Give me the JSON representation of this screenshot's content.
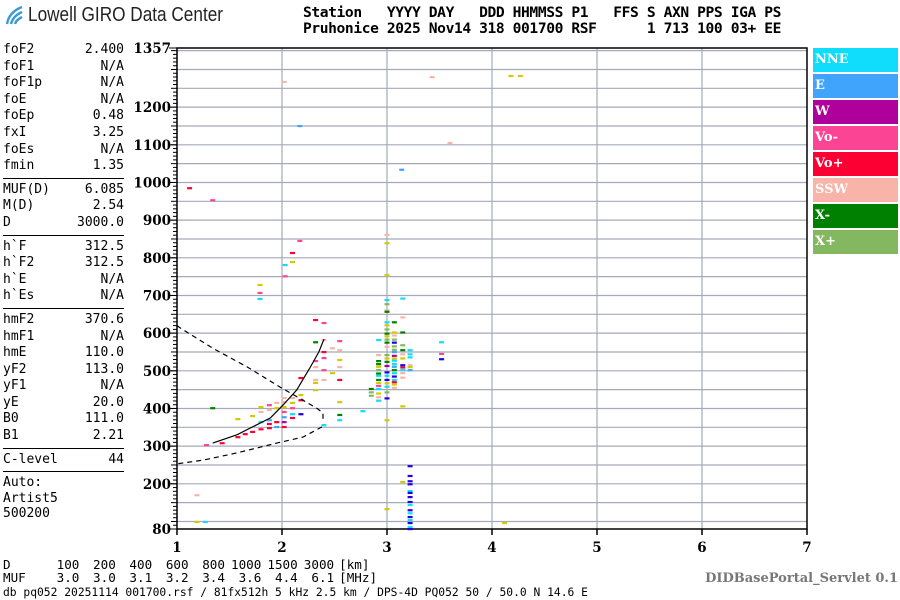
{
  "logo": {
    "text": "Lowell GIRO Data Center"
  },
  "header": {
    "labels_line": "Station   YYYY DAY   DDD HHMMSS P1   FFS S AXN PPS IGA PS",
    "values_line": "Pruhonice 2025 Nov14 318 001700 RSF      1 713 100 03+ EE"
  },
  "params": [
    [
      [
        "foF2",
        "2.400"
      ],
      [
        "foF1",
        "N/A"
      ],
      [
        "foF1p",
        "N/A"
      ],
      [
        "foE",
        "N/A"
      ],
      [
        "foEp",
        "0.48"
      ],
      [
        "fxI",
        "3.25"
      ],
      [
        "foEs",
        "N/A"
      ],
      [
        "fmin",
        "1.35"
      ]
    ],
    [
      [
        "MUF(D)",
        "6.085"
      ],
      [
        "M(D)",
        "2.54"
      ],
      [
        "D",
        "3000.0"
      ]
    ],
    [
      [
        "h`F",
        "312.5"
      ],
      [
        "h`F2",
        "312.5"
      ],
      [
        "h`E",
        "N/A"
      ],
      [
        "h`Es",
        "N/A"
      ]
    ],
    [
      [
        "hmF2",
        "370.6"
      ],
      [
        "hmF1",
        "N/A"
      ],
      [
        "hmE",
        "110.0"
      ],
      [
        "yF2",
        "113.0"
      ],
      [
        "yF1",
        "N/A"
      ],
      [
        "yE",
        "20.0"
      ],
      [
        "B0",
        "111.0"
      ],
      [
        "B1",
        "2.21"
      ]
    ],
    [
      [
        "C-level",
        "44"
      ]
    ]
  ],
  "autoscaling": [
    "Auto:",
    "Artist5",
    "500200"
  ],
  "legend": [
    {
      "label": "NNE",
      "color": "#10dcfc"
    },
    {
      "label": "E",
      "color": "#40a4fc"
    },
    {
      "label": "W",
      "color": "#b0009c"
    },
    {
      "label": "Vo-",
      "color": "#fc4494"
    },
    {
      "label": "Vo+",
      "color": "#fc0034"
    },
    {
      "label": "SSW",
      "color": "#f8b4a8"
    },
    {
      "label": "X-",
      "color": "#008000"
    },
    {
      "label": "X+",
      "color": "#84b860"
    }
  ],
  "bottom": {
    "d_label": "D",
    "d_values": [
      "100",
      "200",
      "400",
      "600",
      "800",
      "1000",
      "1500",
      "3000"
    ],
    "d_unit": "[km]",
    "muf_label": "MUF",
    "muf_values": [
      "3.0",
      "3.0",
      "3.1",
      "3.2",
      "3.4",
      "3.6",
      "4.4",
      "6.1"
    ],
    "muf_unit": "[MHz]",
    "db_line": "db pq052 20251114 001700.rsf / 81fx512h 5 kHz 2.5 km / DPS-4D PQ052 50 / 50.0 N 14.6 E",
    "servlet": "DIDBasePortal_Servlet 0.1"
  },
  "chart_data": {
    "type": "scatter",
    "xlim": [
      1,
      7
    ],
    "ylim": [
      80,
      1357
    ],
    "x_ticks": [
      "1",
      "2",
      "3",
      "4",
      "5",
      "6",
      "7"
    ],
    "y_ticks": [
      "80",
      "200",
      "300",
      "400",
      "500",
      "600",
      "700",
      "800",
      "900",
      "1000",
      "1100",
      "1200",
      "1357"
    ],
    "grid": true,
    "legend_position": "right",
    "extra_colors": {
      "y": "#d4c800",
      "b": "#2000e0"
    },
    "color_codes": {
      "N": "NNE",
      "E": "E",
      "W": "W",
      "m": "Vo-",
      "p": "Vo+",
      "S": "SSW",
      "x": "X-",
      "X": "X+"
    },
    "traces": [
      [
        1.12,
        985,
        "p"
      ],
      [
        1.34,
        953,
        "m"
      ],
      [
        2.02,
        1267,
        "S"
      ],
      [
        2.17,
        1150,
        "E"
      ],
      [
        3.43,
        1280,
        "S"
      ],
      [
        4.18,
        1283,
        "y"
      ],
      [
        4.27,
        1283,
        "y"
      ],
      [
        3.6,
        1105,
        "S"
      ],
      [
        3.14,
        1034,
        "E"
      ],
      [
        3.0,
        861,
        "S"
      ],
      [
        1.79,
        728,
        "y"
      ],
      [
        1.79,
        707,
        "m"
      ],
      [
        1.79,
        691,
        "N"
      ],
      [
        2.03,
        781,
        "N"
      ],
      [
        2.03,
        751,
        "m"
      ],
      [
        2.1,
        789,
        "y"
      ],
      [
        2.1,
        813,
        "p"
      ],
      [
        2.17,
        845,
        "m"
      ],
      [
        1.28,
        303,
        "m"
      ],
      [
        1.43,
        308,
        "p"
      ],
      [
        1.58,
        324,
        "p"
      ],
      [
        1.58,
        372,
        "y"
      ],
      [
        1.65,
        332,
        "p"
      ],
      [
        1.72,
        338,
        "p"
      ],
      [
        1.72,
        380,
        "y"
      ],
      [
        1.8,
        345,
        "p"
      ],
      [
        1.8,
        364,
        "N"
      ],
      [
        1.8,
        391,
        "S"
      ],
      [
        1.8,
        404,
        "y"
      ],
      [
        1.88,
        348,
        "p"
      ],
      [
        1.88,
        359,
        "p"
      ],
      [
        1.88,
        369,
        "E"
      ],
      [
        1.88,
        396,
        "S"
      ],
      [
        1.88,
        409,
        "m"
      ],
      [
        1.95,
        351,
        "E"
      ],
      [
        1.95,
        364,
        "p"
      ],
      [
        1.95,
        401,
        "y"
      ],
      [
        1.95,
        415,
        "S"
      ],
      [
        2.02,
        351,
        "p"
      ],
      [
        2.02,
        364,
        "W"
      ],
      [
        2.02,
        377,
        "E"
      ],
      [
        2.02,
        391,
        "m"
      ],
      [
        2.02,
        404,
        "y"
      ],
      [
        2.02,
        417,
        "S"
      ],
      [
        2.02,
        428,
        "S"
      ],
      [
        2.1,
        375,
        "p"
      ],
      [
        2.1,
        385,
        "N"
      ],
      [
        2.1,
        401,
        "m"
      ],
      [
        2.1,
        415,
        "y"
      ],
      [
        2.1,
        428,
        "S"
      ],
      [
        2.18,
        385,
        "b"
      ],
      [
        2.18,
        422,
        "p"
      ],
      [
        2.18,
        436,
        "y"
      ],
      [
        2.18,
        481,
        "p"
      ],
      [
        2.32,
        449,
        "y"
      ],
      [
        2.32,
        468,
        "y"
      ],
      [
        2.32,
        476,
        "S"
      ],
      [
        2.32,
        510,
        "S"
      ],
      [
        2.32,
        526,
        "m"
      ],
      [
        2.32,
        576,
        "x"
      ],
      [
        2.32,
        635,
        "p"
      ],
      [
        2.4,
        476,
        "S"
      ],
      [
        2.4,
        502,
        "m"
      ],
      [
        2.4,
        534,
        "m"
      ],
      [
        2.4,
        550,
        "p"
      ],
      [
        2.4,
        582,
        "S"
      ],
      [
        2.4,
        627,
        "m"
      ],
      [
        2.4,
        356,
        "N"
      ],
      [
        2.48,
        560,
        "S"
      ],
      [
        2.48,
        494,
        "y"
      ],
      [
        2.55,
        579,
        "m"
      ],
      [
        2.55,
        555,
        "S"
      ],
      [
        2.55,
        529,
        "y"
      ],
      [
        2.55,
        510,
        "S"
      ],
      [
        2.55,
        476,
        "p"
      ],
      [
        2.55,
        417,
        "y"
      ],
      [
        2.55,
        383,
        "x"
      ],
      [
        2.55,
        369,
        "N"
      ],
      [
        1.34,
        401,
        "x"
      ],
      [
        2.77,
        393,
        "N"
      ],
      [
        2.85,
        452,
        "x"
      ],
      [
        2.85,
        443,
        "X"
      ],
      [
        2.85,
        434,
        "X"
      ],
      [
        2.92,
        582,
        "N"
      ],
      [
        2.92,
        542,
        "S"
      ],
      [
        2.92,
        526,
        "x"
      ],
      [
        2.92,
        518,
        "x"
      ],
      [
        2.92,
        511,
        "y"
      ],
      [
        2.92,
        502,
        "X"
      ],
      [
        2.92,
        493,
        "x"
      ],
      [
        2.92,
        487,
        "N"
      ],
      [
        2.92,
        476,
        "x"
      ],
      [
        2.92,
        468,
        "y"
      ],
      [
        2.92,
        460,
        "m"
      ],
      [
        2.92,
        452,
        "N"
      ],
      [
        2.92,
        440,
        "y"
      ],
      [
        2.92,
        430,
        "S"
      ],
      [
        2.92,
        421,
        "N"
      ],
      [
        3.0,
        839,
        "y"
      ],
      [
        3.0,
        754,
        "y"
      ],
      [
        3.0,
        688,
        "N"
      ],
      [
        3.0,
        677,
        "X"
      ],
      [
        3.0,
        661,
        "S"
      ],
      [
        3.0,
        657,
        "x"
      ],
      [
        3.0,
        629,
        "N"
      ],
      [
        3.0,
        621,
        "y"
      ],
      [
        3.0,
        610,
        "X"
      ],
      [
        3.0,
        599,
        "x"
      ],
      [
        3.0,
        592,
        "y"
      ],
      [
        3.0,
        583,
        "X"
      ],
      [
        3.0,
        575,
        "x"
      ],
      [
        3.0,
        564,
        "S"
      ],
      [
        3.0,
        542,
        "X"
      ],
      [
        3.0,
        533,
        "y"
      ],
      [
        3.0,
        524,
        "x"
      ],
      [
        3.0,
        513,
        "W"
      ],
      [
        3.0,
        496,
        "b"
      ],
      [
        3.0,
        487,
        "N"
      ],
      [
        3.0,
        476,
        "b"
      ],
      [
        3.0,
        467,
        "y"
      ],
      [
        3.0,
        458,
        "N"
      ],
      [
        3.0,
        443,
        "X"
      ],
      [
        3.0,
        427,
        "b"
      ],
      [
        3.0,
        369,
        "y"
      ],
      [
        3.07,
        629,
        "x"
      ],
      [
        3.07,
        602,
        "y"
      ],
      [
        3.07,
        594,
        "S"
      ],
      [
        3.07,
        583,
        "X"
      ],
      [
        3.07,
        575,
        "b"
      ],
      [
        3.07,
        565,
        "X"
      ],
      [
        3.07,
        556,
        "X"
      ],
      [
        3.07,
        550,
        "E"
      ],
      [
        3.07,
        540,
        "W"
      ],
      [
        3.07,
        533,
        "y"
      ],
      [
        3.07,
        527,
        "N"
      ],
      [
        3.07,
        518,
        "N"
      ],
      [
        3.07,
        511,
        "E"
      ],
      [
        3.07,
        502,
        "x"
      ],
      [
        3.07,
        494,
        "N"
      ],
      [
        3.07,
        485,
        "b"
      ],
      [
        3.07,
        476,
        "N"
      ],
      [
        3.07,
        470,
        "p"
      ],
      [
        3.07,
        464,
        "y"
      ],
      [
        3.07,
        455,
        "S"
      ],
      [
        3.15,
        692,
        "N"
      ],
      [
        3.15,
        642,
        "S"
      ],
      [
        3.15,
        602,
        "x"
      ],
      [
        3.15,
        568,
        "X"
      ],
      [
        3.15,
        555,
        "x"
      ],
      [
        3.15,
        544,
        "S"
      ],
      [
        3.15,
        533,
        "y"
      ],
      [
        3.15,
        515,
        "b"
      ],
      [
        3.15,
        509,
        "p"
      ],
      [
        3.15,
        502,
        "N"
      ],
      [
        3.15,
        494,
        "S"
      ],
      [
        3.15,
        482,
        "S"
      ],
      [
        3.15,
        406,
        "y"
      ],
      [
        3.22,
        555,
        "N"
      ],
      [
        3.22,
        544,
        "N"
      ],
      [
        3.22,
        536,
        "N"
      ],
      [
        3.22,
        515,
        "S"
      ],
      [
        3.22,
        510,
        "y"
      ],
      [
        3.22,
        502,
        "E"
      ],
      [
        3.52,
        576,
        "N"
      ],
      [
        3.52,
        545,
        "m"
      ],
      [
        3.52,
        531,
        "b"
      ],
      [
        3.22,
        247,
        "b"
      ],
      [
        3.22,
        221,
        "b"
      ],
      [
        3.22,
        207,
        "b"
      ],
      [
        3.22,
        199,
        "b"
      ],
      [
        3.22,
        181,
        "N"
      ],
      [
        3.22,
        176,
        "b"
      ],
      [
        3.22,
        165,
        "b"
      ],
      [
        3.22,
        152,
        "b"
      ],
      [
        3.22,
        144,
        "N"
      ],
      [
        3.22,
        130,
        "b"
      ],
      [
        3.22,
        122,
        "N"
      ],
      [
        3.22,
        112,
        "b"
      ],
      [
        3.22,
        104,
        "N"
      ],
      [
        3.22,
        96,
        "b"
      ],
      [
        3.22,
        85,
        "N"
      ],
      [
        3.22,
        80,
        "b"
      ],
      [
        3.15,
        205,
        "y"
      ],
      [
        3.0,
        133,
        "y"
      ],
      [
        1.19,
        99,
        "y"
      ],
      [
        1.27,
        99,
        "N"
      ],
      [
        1.19,
        170,
        "S"
      ],
      [
        4.12,
        96,
        "y"
      ]
    ],
    "curves": [
      {
        "style": "solid",
        "points": [
          [
            1.34,
            308
          ],
          [
            1.57,
            330
          ],
          [
            1.72,
            351
          ],
          [
            1.89,
            375
          ],
          [
            2.01,
            409
          ],
          [
            2.14,
            449
          ],
          [
            2.27,
            510
          ],
          [
            2.35,
            550
          ],
          [
            2.4,
            584
          ]
        ]
      },
      {
        "style": "dashed",
        "points": [
          [
            1.0,
            620
          ],
          [
            1.03,
            614
          ],
          [
            1.34,
            560
          ],
          [
            1.67,
            510
          ],
          [
            1.98,
            457
          ],
          [
            2.2,
            422
          ],
          [
            2.33,
            401
          ],
          [
            2.39,
            388
          ],
          [
            2.39,
            364
          ]
        ]
      },
      {
        "style": "dashed",
        "points": [
          [
            2.38,
            351
          ],
          [
            2.2,
            324
          ],
          [
            1.95,
            308
          ],
          [
            1.57,
            282
          ],
          [
            1.25,
            263
          ],
          [
            1.0,
            253
          ]
        ]
      }
    ]
  }
}
